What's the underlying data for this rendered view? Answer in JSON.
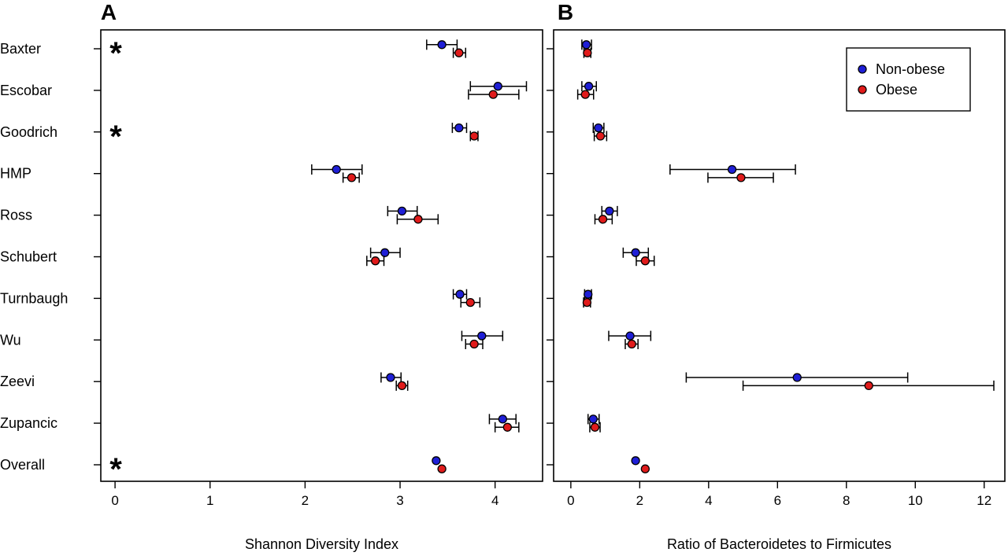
{
  "chart_data": [
    {
      "type": "scatter",
      "panel_label": "A",
      "title": "",
      "xlabel": "Shannon Diversity Index",
      "ylabel": "",
      "xlim": [
        -0.15,
        4.5
      ],
      "xticks": [
        0,
        1,
        2,
        3,
        4
      ],
      "grid": false,
      "categories": [
        "Baxter",
        "Escobar",
        "Goodrich",
        "HMP",
        "Ross",
        "Schubert",
        "Turnbaugh",
        "Wu",
        "Zeevi",
        "Zupancic",
        "Overall"
      ],
      "significance_marker": "*",
      "significant": [
        "Baxter",
        "Goodrich",
        "Overall"
      ],
      "series": [
        {
          "name": "Non-obese",
          "color": "#1f1fd6",
          "values": [
            3.44,
            4.03,
            3.62,
            2.33,
            3.02,
            2.84,
            3.63,
            3.86,
            2.9,
            4.08,
            3.38
          ],
          "lower": [
            3.28,
            3.74,
            3.55,
            2.07,
            2.87,
            2.69,
            3.56,
            3.65,
            2.8,
            3.94,
            null
          ],
          "upper": [
            3.6,
            4.33,
            3.7,
            2.6,
            3.18,
            3.0,
            3.7,
            4.08,
            3.01,
            4.22,
            null
          ]
        },
        {
          "name": "Obese",
          "color": "#e01b1b",
          "values": [
            3.62,
            3.98,
            3.78,
            2.49,
            3.19,
            2.74,
            3.74,
            3.78,
            3.02,
            4.13,
            3.44
          ],
          "lower": [
            3.56,
            3.72,
            3.74,
            2.4,
            2.97,
            2.65,
            3.64,
            3.69,
            2.96,
            4.0,
            null
          ],
          "upper": [
            3.69,
            4.25,
            3.82,
            2.57,
            3.4,
            2.83,
            3.84,
            3.87,
            3.08,
            4.25,
            null
          ]
        }
      ]
    },
    {
      "type": "scatter",
      "panel_label": "B",
      "title": "",
      "xlabel": "Ratio of Bacteroidetes to Firmicutes",
      "ylabel": "",
      "xlim": [
        -0.5,
        12.6
      ],
      "xticks": [
        0,
        2,
        4,
        6,
        8,
        10,
        12
      ],
      "grid": false,
      "legend_position": "top-right",
      "categories": [
        "Baxter",
        "Escobar",
        "Goodrich",
        "HMP",
        "Ross",
        "Schubert",
        "Turnbaugh",
        "Wu",
        "Zeevi",
        "Zupancic",
        "Overall"
      ],
      "series": [
        {
          "name": "Non-obese",
          "color": "#1f1fd6",
          "values": [
            0.45,
            0.52,
            0.8,
            4.68,
            1.12,
            1.88,
            0.5,
            1.72,
            6.57,
            0.65,
            1.88
          ],
          "lower": [
            0.32,
            0.32,
            0.65,
            2.88,
            0.9,
            1.52,
            0.4,
            1.1,
            3.35,
            0.5,
            null
          ],
          "upper": [
            0.6,
            0.74,
            0.96,
            6.52,
            1.35,
            2.25,
            0.6,
            2.32,
            9.78,
            0.82,
            null
          ]
        },
        {
          "name": "Obese",
          "color": "#e01b1b",
          "values": [
            0.48,
            0.42,
            0.86,
            4.94,
            0.93,
            2.16,
            0.47,
            1.77,
            8.65,
            0.7,
            2.16
          ],
          "lower": [
            0.38,
            0.2,
            0.68,
            3.98,
            0.7,
            1.9,
            0.37,
            1.58,
            5.0,
            0.55,
            null
          ],
          "upper": [
            0.58,
            0.66,
            1.04,
            5.88,
            1.2,
            2.42,
            0.57,
            1.95,
            12.28,
            0.85,
            null
          ]
        }
      ]
    }
  ]
}
